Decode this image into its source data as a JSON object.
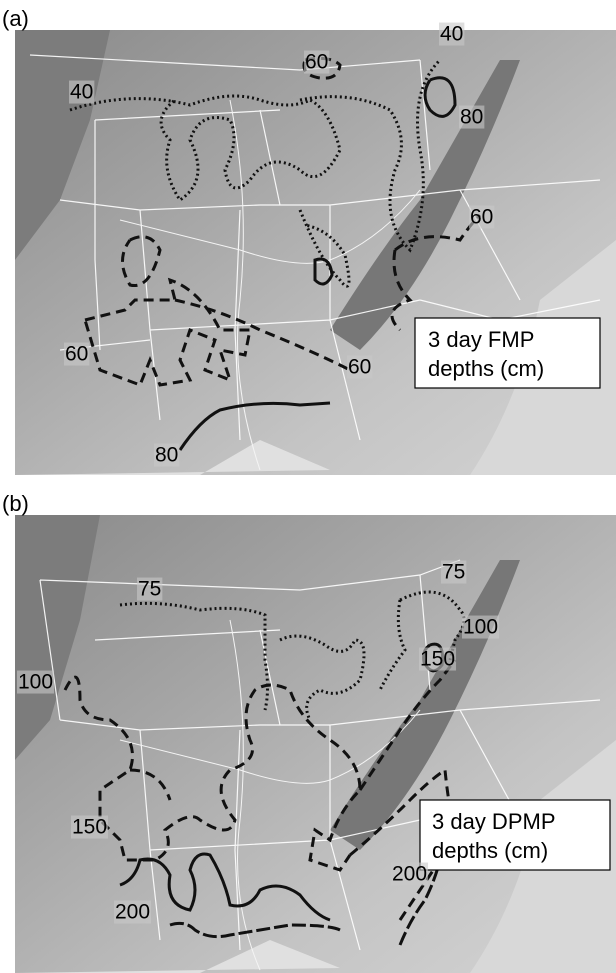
{
  "panels": [
    {
      "label": "(a)",
      "legend": [
        "3 day FMP",
        "depths (cm)"
      ],
      "contour_labels": [
        "40",
        "60",
        "40",
        "80",
        "60",
        "60",
        "60",
        "80"
      ]
    },
    {
      "label": "(b)",
      "legend": [
        "3 day DPMP",
        "depths (cm)"
      ],
      "contour_labels": [
        "75",
        "75",
        "100",
        "150",
        "100",
        "150",
        "200",
        "200"
      ]
    }
  ]
}
